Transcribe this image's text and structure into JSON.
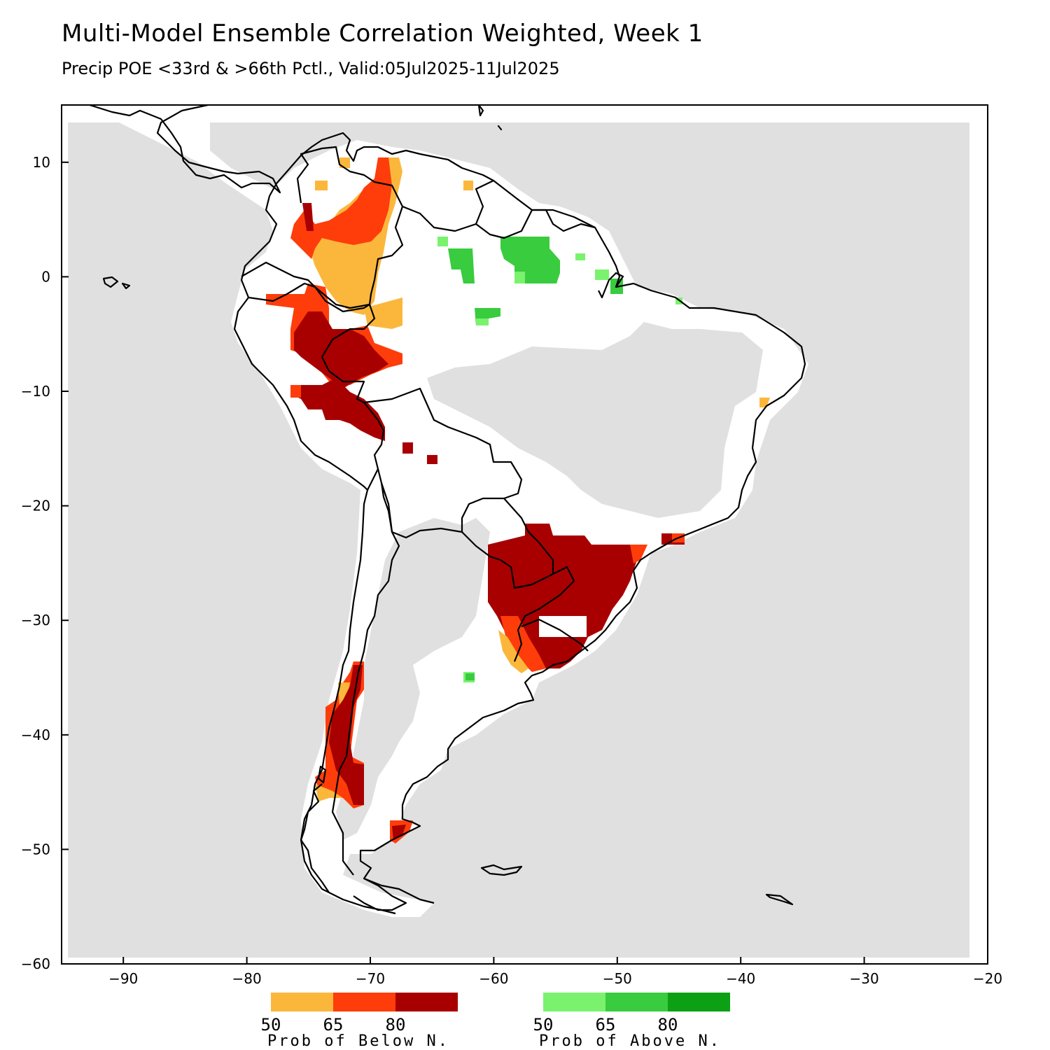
{
  "header": {
    "title": "Multi-Model Ensemble Correlation Weighted, Week 1",
    "subtitle": "Precip POE <33rd & >66th Pctl., Valid:05Jul2025-11Jul2025"
  },
  "map": {
    "region": "South America",
    "projection": "lon-lat",
    "lon_range": [
      -95,
      -20
    ],
    "lat_range": [
      -60,
      15
    ],
    "x_ticks": [
      "−90",
      "−80",
      "−70",
      "−60",
      "−50",
      "−40",
      "−30",
      "−20"
    ],
    "y_ticks": [
      "10",
      "0",
      "−10",
      "−20",
      "−30",
      "−40",
      "−50",
      "−60"
    ],
    "colors": {
      "no_data_ocean": "#e0e0e0",
      "land_no_signal": "#ffffff",
      "coastline": "#000000",
      "below_50": "#fbb73c",
      "below_65": "#fe3d0b",
      "below_80": "#a80000",
      "above_50": "#7af26e",
      "above_65": "#38cc3e",
      "above_80": "#0ca114"
    }
  },
  "legend": {
    "below": {
      "ticks": [
        "50",
        "65",
        "80"
      ],
      "caption": "Prob of Below N.",
      "colors": [
        "#fbb73c",
        "#fe3d0b",
        "#a80000"
      ]
    },
    "above": {
      "ticks": [
        "50",
        "65",
        "80"
      ],
      "caption": "Prob of Above N.",
      "colors": [
        "#7af26e",
        "#38cc3e",
        "#0ca114"
      ]
    }
  }
}
